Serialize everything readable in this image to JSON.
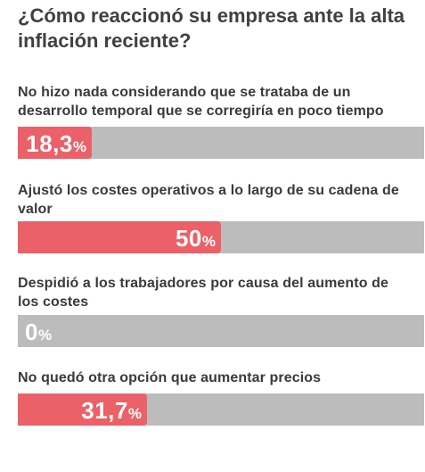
{
  "title": "¿Cómo reaccionó su empresa ante la alta inflación reciente?",
  "chart_data": {
    "type": "bar",
    "title": "¿Cómo reaccionó su empresa ante la alta inflación reciente?",
    "unit": "%",
    "xlim": [
      0,
      100
    ],
    "categories": [
      "No hizo nada considerando que se trataba de un desarrollo temporal que se corregiría en poco tiempo",
      "Ajustó los costes operativos a lo largo de su cadena de valor",
      "Despidió a los trabajadores por causa del aumento de los costes",
      "No quedó otra opción que aumentar precios"
    ],
    "values": [
      18.3,
      50,
      0,
      31.7
    ],
    "value_labels": [
      "18,3",
      "50",
      "0",
      "31,7"
    ],
    "colors": {
      "bar_fill": "#ec6068",
      "bar_track": "#bcbcbc",
      "value_text": "#ffffff",
      "zero_value_text": "#ffffff"
    }
  }
}
